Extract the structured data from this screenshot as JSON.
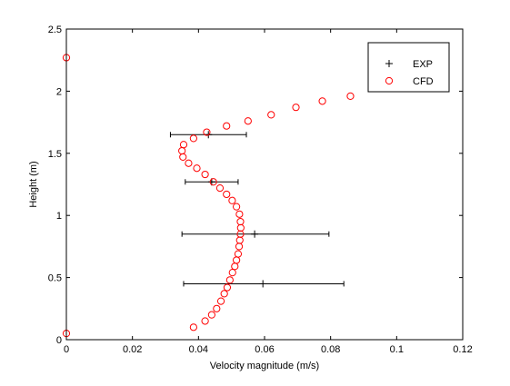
{
  "chart_data": {
    "type": "scatter",
    "xlabel": "Velocity magnitude (m/s)",
    "ylabel": "Height (m)",
    "xlim": [
      0,
      0.12
    ],
    "ylim": [
      0,
      2.5
    ],
    "xticks": [
      0,
      0.02,
      0.04,
      0.06,
      0.08,
      0.1,
      0.12
    ],
    "xtick_labels": [
      "0",
      "0.02",
      "0.04",
      "0.06",
      "0.08",
      "0.1",
      "0.12"
    ],
    "yticks": [
      0,
      0.5,
      1,
      1.5,
      2,
      2.5
    ],
    "ytick_labels": [
      "0",
      "0.5",
      "1",
      "1.5",
      "2",
      "2.5"
    ],
    "grid": false,
    "legend_position": "top-right",
    "series": [
      {
        "name": "EXP",
        "marker": "+",
        "color": "#000000",
        "points": [
          {
            "x": 0.0595,
            "y": 0.45,
            "xerr_low": 0.0355,
            "xerr_high": 0.084
          },
          {
            "x": 0.057,
            "y": 0.85,
            "xerr_low": 0.035,
            "xerr_high": 0.0795
          },
          {
            "x": 0.044,
            "y": 1.27,
            "xerr_low": 0.036,
            "xerr_high": 0.052
          },
          {
            "x": 0.043,
            "y": 1.65,
            "xerr_low": 0.0315,
            "xerr_high": 0.0545
          }
        ]
      },
      {
        "name": "CFD",
        "marker": "o",
        "color": "#ff0000",
        "points": [
          {
            "x": 0.0,
            "y": 0.05
          },
          {
            "x": 0.0385,
            "y": 0.1
          },
          {
            "x": 0.042,
            "y": 0.15
          },
          {
            "x": 0.044,
            "y": 0.2
          },
          {
            "x": 0.0455,
            "y": 0.25
          },
          {
            "x": 0.0468,
            "y": 0.31
          },
          {
            "x": 0.0478,
            "y": 0.37
          },
          {
            "x": 0.0487,
            "y": 0.42
          },
          {
            "x": 0.0495,
            "y": 0.48
          },
          {
            "x": 0.0503,
            "y": 0.54
          },
          {
            "x": 0.051,
            "y": 0.59
          },
          {
            "x": 0.0515,
            "y": 0.64
          },
          {
            "x": 0.052,
            "y": 0.69
          },
          {
            "x": 0.0523,
            "y": 0.75
          },
          {
            "x": 0.0525,
            "y": 0.8
          },
          {
            "x": 0.0527,
            "y": 0.85
          },
          {
            "x": 0.0528,
            "y": 0.9
          },
          {
            "x": 0.0527,
            "y": 0.95
          },
          {
            "x": 0.0524,
            "y": 1.01
          },
          {
            "x": 0.0515,
            "y": 1.07
          },
          {
            "x": 0.0502,
            "y": 1.12
          },
          {
            "x": 0.0485,
            "y": 1.17
          },
          {
            "x": 0.0465,
            "y": 1.22
          },
          {
            "x": 0.0445,
            "y": 1.27
          },
          {
            "x": 0.042,
            "y": 1.33
          },
          {
            "x": 0.0395,
            "y": 1.38
          },
          {
            "x": 0.037,
            "y": 1.42
          },
          {
            "x": 0.0353,
            "y": 1.47
          },
          {
            "x": 0.035,
            "y": 1.52
          },
          {
            "x": 0.0355,
            "y": 1.57
          },
          {
            "x": 0.0385,
            "y": 1.62
          },
          {
            "x": 0.0425,
            "y": 1.67
          },
          {
            "x": 0.0485,
            "y": 1.72
          },
          {
            "x": 0.055,
            "y": 1.76
          },
          {
            "x": 0.062,
            "y": 1.81
          },
          {
            "x": 0.0695,
            "y": 1.87
          },
          {
            "x": 0.0775,
            "y": 1.92
          },
          {
            "x": 0.086,
            "y": 1.96
          },
          {
            "x": 0.0,
            "y": 2.27
          }
        ]
      }
    ]
  }
}
